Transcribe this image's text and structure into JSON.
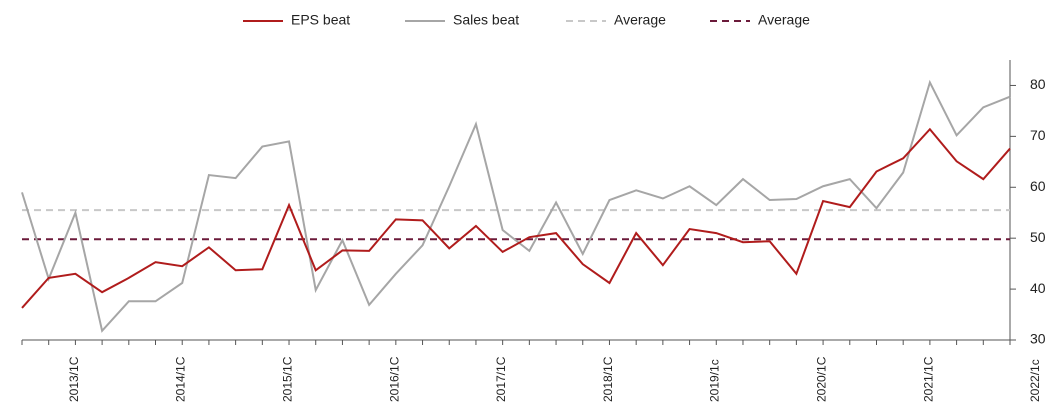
{
  "chart_data": {
    "type": "line",
    "categories": [
      null,
      "2013/1C",
      null,
      null,
      null,
      "2014/1C",
      null,
      null,
      null,
      "2015/1C",
      null,
      null,
      null,
      "2016/1C",
      null,
      null,
      null,
      "2017/1C",
      null,
      null,
      null,
      "2018/1C",
      null,
      null,
      null,
      "2019/1c",
      null,
      null,
      null,
      "2020/1C",
      null,
      null,
      null,
      "2021/1C",
      null,
      null,
      null,
      "2022/1c"
    ],
    "series": [
      {
        "name": "EPS beat",
        "color": "#b01c1c",
        "values": [
          36.3,
          42.2,
          43,
          39.4,
          42.2,
          45.3,
          44.5,
          48.2,
          43.7,
          43.9,
          56.5,
          43.7,
          47.6,
          47.5,
          53.7,
          53.5,
          48,
          52.4,
          47.3,
          50.2,
          51,
          44.9,
          41.2,
          51,
          44.7,
          51.8,
          51,
          49.2,
          49.4,
          43,
          57.3,
          56.1,
          63.1,
          65.7,
          71.4,
          65.1,
          61.6,
          67.6
        ]
      },
      {
        "name": "Sales beat",
        "color": "#a6a6a6",
        "values": [
          59,
          42,
          55,
          31.8,
          37.6,
          37.6,
          41.2,
          62.4,
          61.8,
          68,
          69,
          39.8,
          49.6,
          36.9,
          43,
          48.6,
          60.2,
          72.4,
          51.6,
          47.5,
          57,
          46.9,
          57.5,
          59.4,
          57.8,
          60.2,
          56.5,
          61.6,
          57.5,
          57.7,
          60.2,
          61.6,
          55.9,
          62.9,
          80.6,
          70.2,
          75.7,
          77.8
        ]
      }
    ],
    "averages": [
      {
        "name": "Average",
        "color": "#c8c8c8",
        "value": 55.5
      },
      {
        "name": "Average",
        "color": "#6b1a3a",
        "value": 49.8
      }
    ],
    "ylim": [
      30,
      85
    ],
    "yticks": [
      30,
      40,
      50,
      60,
      70,
      80
    ],
    "y_axis_side": "right"
  }
}
